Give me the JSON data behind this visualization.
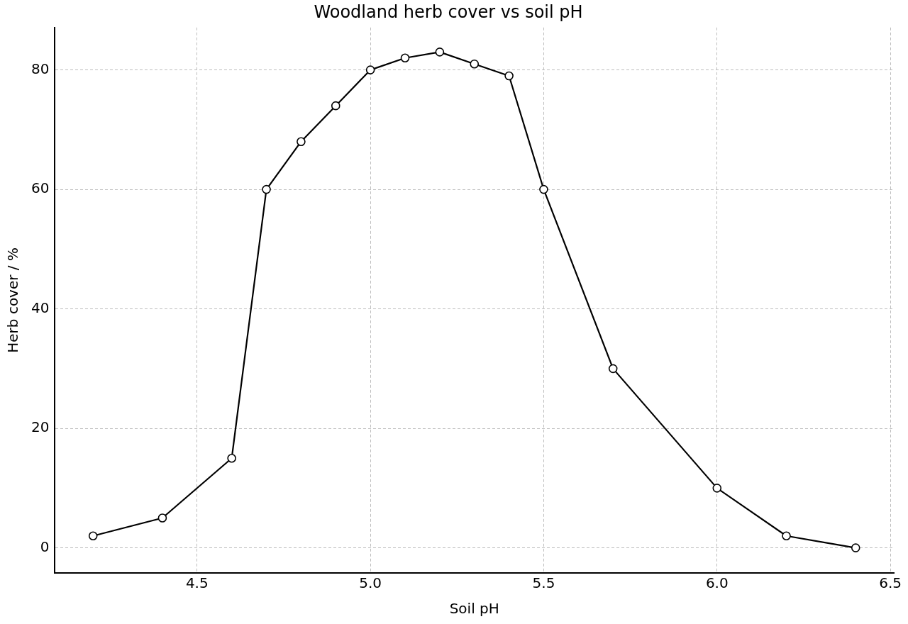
{
  "chart_data": {
    "type": "line",
    "title": "Woodland herb cover vs soil pH",
    "xlabel": "Soil pH",
    "ylabel": "Herb cover / %",
    "x": [
      4.2,
      4.4,
      4.6,
      4.7,
      4.8,
      4.9,
      5.0,
      5.1,
      5.2,
      5.3,
      5.4,
      5.5,
      5.7,
      6.0,
      6.2,
      6.4
    ],
    "series": [
      {
        "color": "#000000",
        "values": [
          2,
          5,
          15,
          60,
          68,
          74,
          80,
          82,
          83,
          81,
          79,
          60,
          30,
          10,
          2,
          0
        ]
      }
    ],
    "xlim": [
      4.09,
      6.51
    ],
    "xticks": [
      {
        "value": 4.5,
        "label": "4.5"
      },
      {
        "value": 5.0,
        "label": "5.0"
      },
      {
        "value": 5.5,
        "label": "5.5"
      },
      {
        "value": 6.0,
        "label": "6.0"
      },
      {
        "value": 6.5,
        "label": "6.5"
      }
    ],
    "ylim": [
      -4.2,
      87.1
    ],
    "yticks": [
      0,
      20,
      40,
      60,
      80
    ],
    "grid": true,
    "legend": false,
    "marker": "circle",
    "line_style": "solid"
  }
}
